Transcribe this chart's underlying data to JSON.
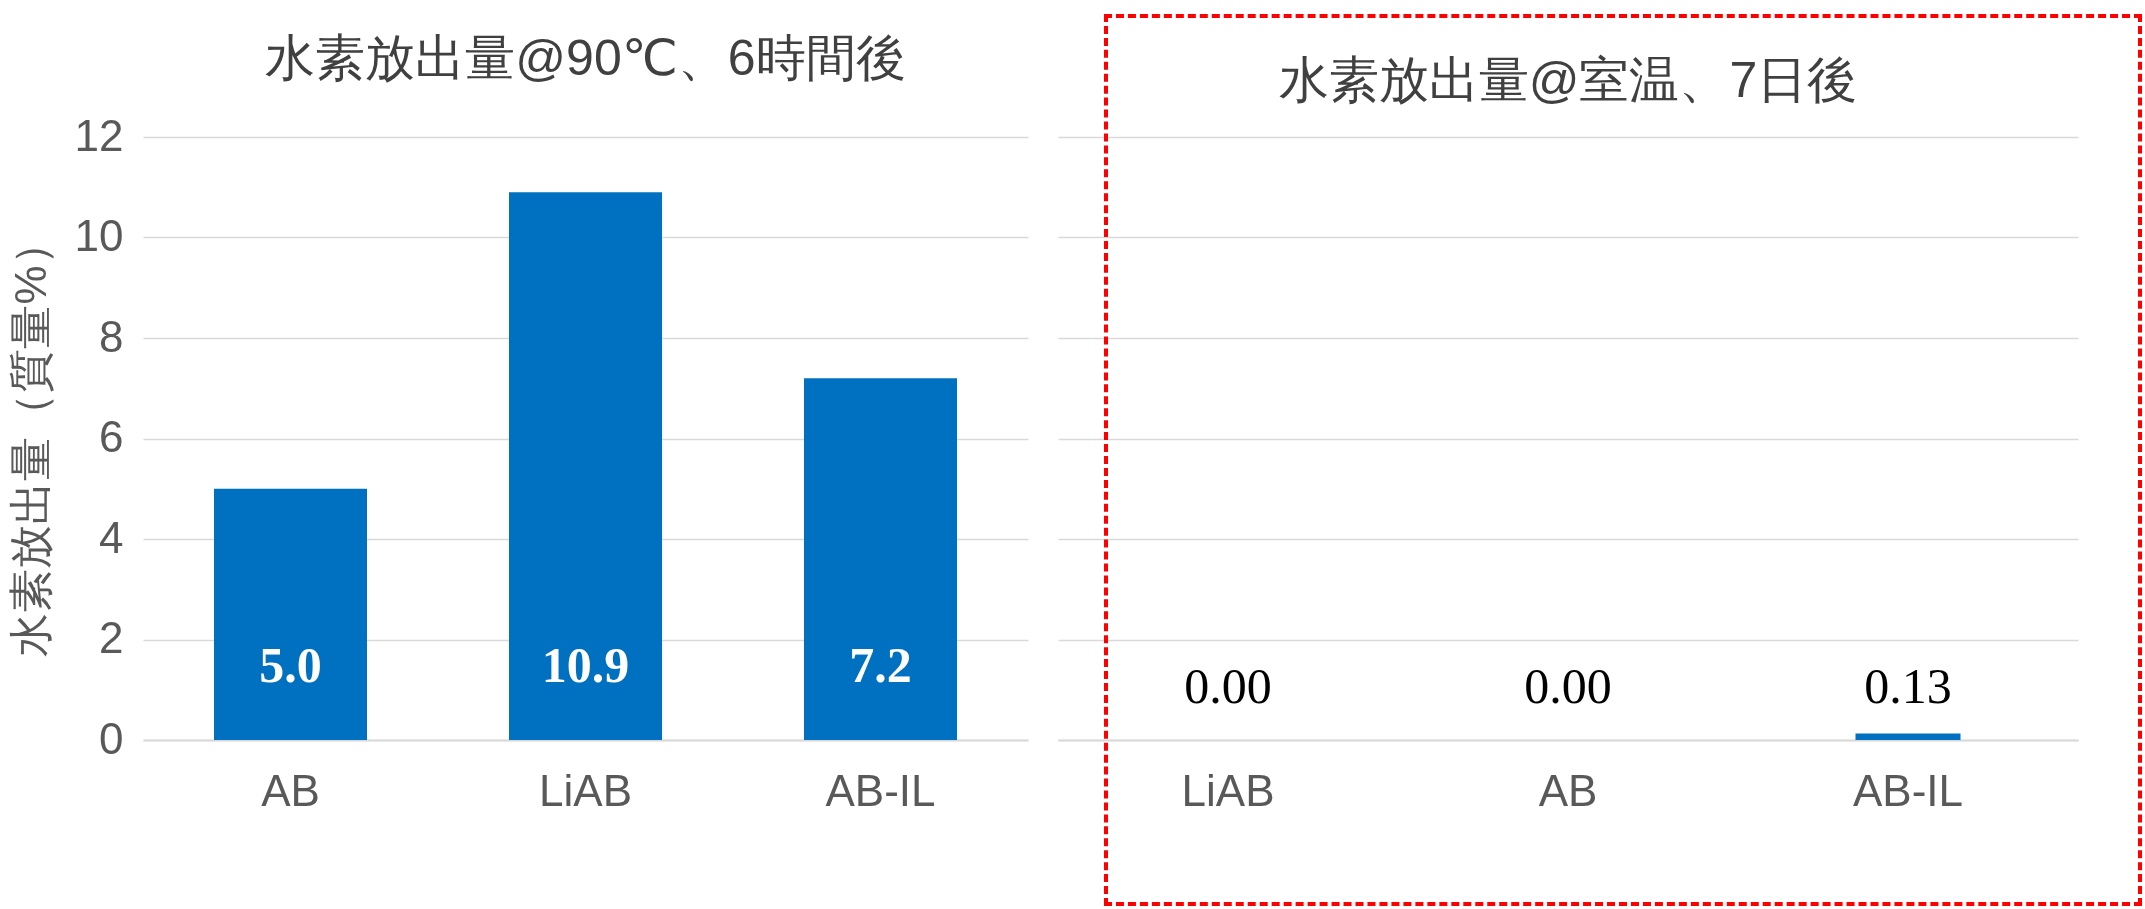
{
  "chart_data": [
    {
      "type": "bar",
      "title": "水素放出量@90℃、6時間後",
      "ylabel": "水素放出量（質量%）",
      "categories": [
        "AB",
        "LiAB",
        "AB-IL"
      ],
      "values": [
        5.0,
        10.9,
        7.2
      ],
      "value_labels": [
        "5.0",
        "10.9",
        "7.2"
      ],
      "color": "#0070c0",
      "ylim": [
        0,
        12
      ],
      "yticks": [
        0,
        2,
        4,
        6,
        8,
        10,
        12
      ],
      "grid": "y"
    },
    {
      "type": "bar",
      "title": "水素放出量@室温、7日後",
      "categories": [
        "LiAB",
        "AB",
        "AB-IL"
      ],
      "values": [
        0.0,
        0.0,
        0.13
      ],
      "value_labels": [
        "0.00",
        "0.00",
        "0.13"
      ],
      "color": "#0070c0",
      "ylim": [
        0,
        12
      ],
      "yticks": [
        0,
        2,
        4,
        6,
        8,
        10,
        12
      ],
      "grid": "y",
      "tick_labels": "x"
    }
  ]
}
